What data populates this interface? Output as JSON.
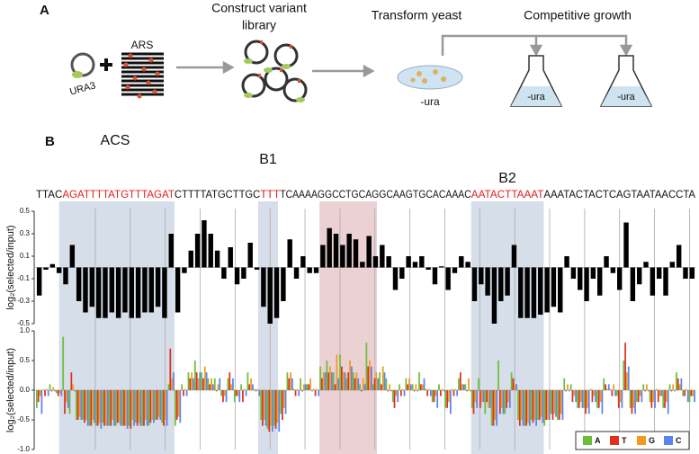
{
  "panel_a": {
    "label": "A",
    "construct": [
      "Construct variant",
      "library"
    ],
    "transform": "Transform yeast",
    "growth": "Competitive growth",
    "ars": "ARS",
    "ura3": "URA3",
    "media": [
      "-ura",
      "-ura",
      "-ura"
    ]
  },
  "panel_b": {
    "label": "B",
    "motifs": [
      "ACS",
      "B1",
      "B2"
    ],
    "sequence": [
      {
        "text": "TTAC"
      },
      {
        "text": "AGATTTTATGTTTAGAT",
        "color": "#e02020"
      },
      {
        "text": "CTTTTATGCTTGC"
      },
      {
        "text": "TTT",
        "color": "#e02020"
      },
      {
        "text": "TCAAAAGGCCTGCAGGCAAGTGCACAAAC"
      },
      {
        "text": "AATACTTAAAT",
        "color": "#e02020"
      },
      {
        "text": "AAATACTACTCAGTAATAACCTA"
      }
    ]
  },
  "chart_data": [
    {
      "type": "bar",
      "y_label": "log₂(selected/input)",
      "color": "#000000",
      "ylim": [
        -0.5,
        0.5
      ],
      "yticks": [
        0.5,
        0.3,
        0.1,
        -0.1,
        -0.3,
        -0.5
      ],
      "values": [
        -0.25,
        -0.02,
        0.03,
        -0.05,
        -0.15,
        0.2,
        -0.3,
        -0.4,
        -0.35,
        -0.45,
        -0.45,
        -0.4,
        -0.45,
        -0.4,
        -0.45,
        -0.45,
        -0.4,
        -0.4,
        -0.35,
        -0.45,
        0.3,
        -0.4,
        -0.05,
        0.15,
        0.3,
        0.42,
        0.3,
        0.15,
        -0.1,
        0.18,
        -0.15,
        -0.1,
        0.22,
        -0.02,
        -0.35,
        -0.5,
        -0.45,
        -0.3,
        0.25,
        -0.1,
        0.1,
        -0.05,
        -0.05,
        0.2,
        0.35,
        0.3,
        0.2,
        0.3,
        0.25,
        0.05,
        0.28,
        0.1,
        0.2,
        0.1,
        -0.2,
        -0.1,
        0.1,
        0.05,
        0.1,
        -0.02,
        -0.15,
        0.01,
        -0.2,
        -0.05,
        0.1,
        0.05,
        -0.3,
        -0.15,
        -0.25,
        -0.5,
        -0.3,
        -0.25,
        0.2,
        -0.45,
        -0.45,
        -0.45,
        -0.42,
        -0.4,
        -0.35,
        -0.4,
        0.1,
        -0.1,
        -0.2,
        -0.3,
        -0.1,
        -0.25,
        0.1,
        -0.05,
        -0.2,
        0.4,
        -0.3,
        -0.15,
        0.05,
        -0.25,
        -0.1,
        -0.25,
        0.05,
        0.2,
        -0.1,
        -0.1
      ]
    },
    {
      "type": "grouped-bar",
      "y_label": "log₂(selected/input)",
      "ylim": [
        -1,
        1
      ],
      "legend": "lower right",
      "yticks": [
        {
          "value": 1,
          "label": "1.0"
        },
        0.5,
        {
          "value": 0,
          "label": "0.0"
        },
        -0.5,
        {
          "value": -1,
          "label": "-1.0"
        }
      ],
      "series": [
        {
          "name": "A",
          "color": "#6abf3a",
          "values": [
            -0.3,
            0.01,
            0.1,
            -0.05,
            0.9,
            -0.4,
            -0.5,
            -0.5,
            -0.6,
            -0.6,
            -0.55,
            -0.6,
            -0.6,
            -0.6,
            -0.6,
            -0.55,
            -0.6,
            -0.6,
            -0.5,
            -0.55,
            0.1,
            -0.6,
            0.1,
            0.3,
            0.5,
            0.3,
            0.2,
            0.2,
            -0.1,
            0.2,
            -0.2,
            0.1,
            0.3,
            0.02,
            -0.5,
            -0.65,
            -0.6,
            -0.4,
            0.3,
            0.02,
            0.2,
            0.1,
            0.02,
            0.4,
            0.5,
            0.3,
            0.6,
            0.2,
            0.3,
            0.1,
            0.8,
            0.1,
            0.3,
            0.2,
            -0.2,
            0.1,
            0.2,
            0.1,
            0.3,
            0.02,
            -0.2,
            0.1,
            -0.3,
            0.02,
            0.2,
            0.1,
            -0.3,
            0.2,
            -0.4,
            -0.6,
            0.5,
            -0.4,
            0.3,
            -0.5,
            -0.6,
            -0.5,
            -0.5,
            -0.6,
            -0.4,
            -0.5,
            0.2,
            0.1,
            -0.3,
            -0.3,
            0.02,
            -0.3,
            0.2,
            0.02,
            -0.1,
            0.5,
            -0.3,
            -0.2,
            0.1,
            -0.2,
            0.02,
            -0.3,
            0.1,
            0.3,
            -0.1,
            -0.2
          ]
        },
        {
          "name": "T",
          "color": "#e0301e",
          "values": [
            -0.2,
            -0.1,
            -0.02,
            -0.1,
            -0.4,
            0.3,
            -0.5,
            -0.55,
            -0.6,
            -0.6,
            -0.6,
            -0.6,
            -0.55,
            -0.6,
            -0.65,
            -0.6,
            -0.6,
            -0.55,
            -0.5,
            -0.6,
            0.7,
            -0.5,
            -0.1,
            0.2,
            0.3,
            0.2,
            0.1,
            -0.02,
            -0.2,
            0.3,
            -0.1,
            -0.2,
            0.1,
            -0.02,
            -0.6,
            -0.7,
            -0.65,
            -0.5,
            0.2,
            -0.1,
            -0.02,
            0.1,
            -0.1,
            0.2,
            0.3,
            0.1,
            0.4,
            0.3,
            0.2,
            -0.02,
            0.4,
            0.2,
            0.1,
            -0.02,
            -0.3,
            -0.1,
            0.1,
            -0.02,
            0.1,
            -0.1,
            -0.2,
            -0.1,
            -0.3,
            -0.1,
            0.3,
            -0.02,
            -0.4,
            -0.3,
            -0.2,
            -0.6,
            -0.4,
            -0.3,
            0.2,
            -0.6,
            -0.6,
            -0.55,
            -0.5,
            -0.5,
            -0.5,
            -0.5,
            -0.02,
            -0.2,
            -0.3,
            -0.4,
            -0.2,
            -0.3,
            0.1,
            -0.1,
            -0.3,
            0.8,
            -0.4,
            -0.2,
            -0.02,
            -0.3,
            -0.2,
            -0.3,
            -0.02,
            0.2,
            -0.1,
            -0.1
          ]
        },
        {
          "name": "G",
          "color": "#f39a1e",
          "values": [
            -0.1,
            0.02,
            0.05,
            -0.05,
            -0.2,
            0.1,
            -0.45,
            -0.5,
            -0.5,
            -0.55,
            -0.6,
            -0.5,
            -0.55,
            -0.6,
            -0.5,
            -0.55,
            -0.5,
            -0.5,
            -0.45,
            -0.5,
            0.2,
            -0.45,
            0.02,
            0.3,
            0.2,
            0.4,
            0.2,
            0.1,
            -0.1,
            0.1,
            -0.1,
            0.02,
            0.2,
            0.02,
            -0.5,
            -0.6,
            -0.55,
            -0.3,
            0.3,
            0.02,
            0.1,
            0.2,
            0.02,
            0.3,
            0.4,
            0.6,
            0.3,
            0.5,
            0.3,
            0.2,
            0.5,
            0.3,
            0.4,
            0.1,
            -0.1,
            0.02,
            0.2,
            0.1,
            0.1,
            0.02,
            -0.1,
            0.02,
            -0.2,
            0.02,
            0.1,
            0.2,
            -0.2,
            -0.2,
            -0.3,
            -0.5,
            -0.3,
            -0.2,
            0.1,
            -0.5,
            -0.55,
            -0.5,
            -0.45,
            -0.5,
            -0.4,
            -0.4,
            0.1,
            -0.1,
            -0.2,
            -0.3,
            -0.1,
            -0.2,
            0.02,
            0.1,
            -0.2,
            0.3,
            -0.3,
            -0.1,
            0.1,
            -0.2,
            -0.1,
            -0.2,
            0.1,
            0.1,
            0.02,
            -0.1
          ]
        },
        {
          "name": "C",
          "color": "#5b84f0",
          "values": [
            -0.4,
            -0.1,
            -0.02,
            -0.1,
            -0.3,
            -0.02,
            -0.5,
            -0.6,
            -0.55,
            -0.65,
            -0.6,
            -0.6,
            -0.6,
            -0.65,
            -0.6,
            -0.6,
            -0.6,
            -0.55,
            -0.5,
            -0.6,
            0.3,
            -0.55,
            -0.1,
            0.2,
            0.3,
            0.3,
            0.1,
            0.2,
            -0.2,
            0.2,
            -0.2,
            -0.1,
            0.1,
            -0.1,
            -0.6,
            -0.7,
            -0.7,
            -0.4,
            0.2,
            -0.1,
            0.1,
            -0.02,
            -0.1,
            0.3,
            0.3,
            0.2,
            0.3,
            0.4,
            0.2,
            0.1,
            0.4,
            0.2,
            0.3,
            -0.02,
            -0.2,
            -0.1,
            0.1,
            -0.02,
            0.2,
            -0.1,
            -0.3,
            -0.02,
            -0.4,
            -0.1,
            0.1,
            -0.02,
            -0.3,
            -0.2,
            -0.3,
            -0.6,
            -0.4,
            -0.3,
            0.1,
            -0.6,
            -0.6,
            -0.6,
            -0.55,
            -0.5,
            -0.45,
            -0.5,
            -0.02,
            -0.2,
            -0.3,
            -0.4,
            -0.2,
            -0.4,
            0.1,
            -0.1,
            -0.3,
            0.4,
            -0.4,
            -0.2,
            -0.02,
            -0.3,
            -0.1,
            -0.4,
            -0.02,
            0.2,
            -0.2,
            -0.2
          ]
        }
      ]
    }
  ]
}
